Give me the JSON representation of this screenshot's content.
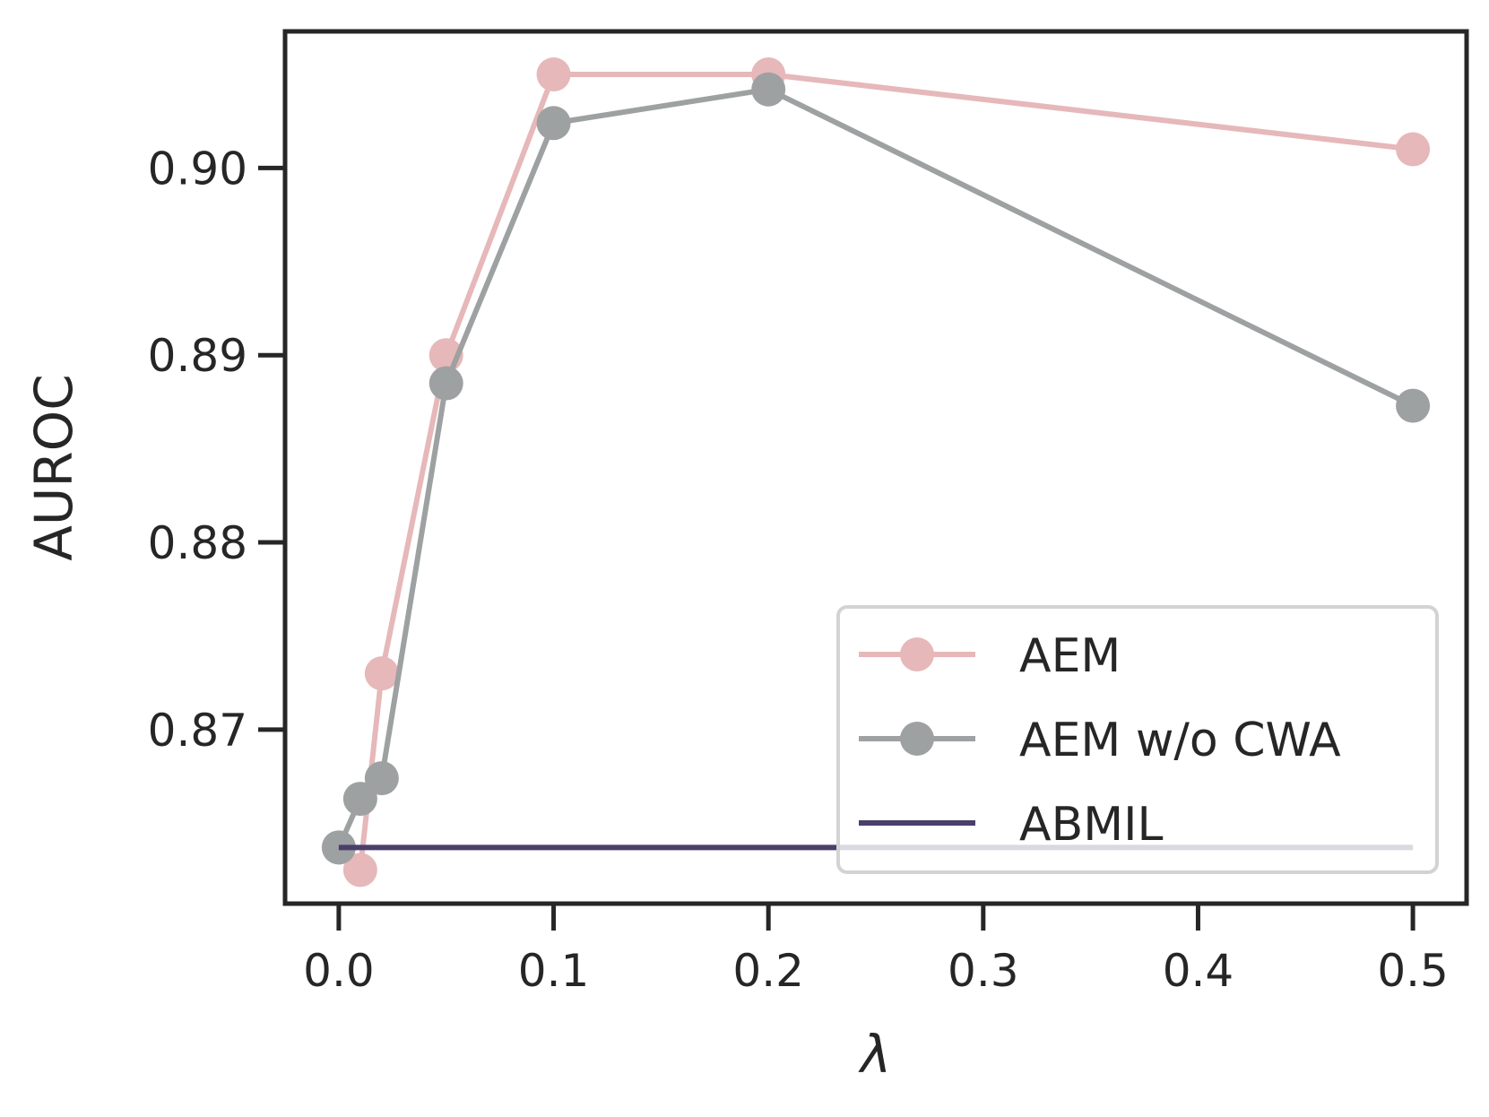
{
  "chart_data": {
    "type": "line",
    "title": "",
    "xlabel": "λ",
    "ylabel": "AUROC",
    "xlim": [
      -0.025,
      0.525
    ],
    "ylim": [
      0.8607,
      0.9073
    ],
    "x_ticks": [
      0.0,
      0.1,
      0.2,
      0.3,
      0.4,
      0.5
    ],
    "x_tick_labels": [
      "0.0",
      "0.1",
      "0.2",
      "0.3",
      "0.4",
      "0.5"
    ],
    "y_ticks": [
      0.87,
      0.88,
      0.89,
      0.9
    ],
    "y_tick_labels": [
      "0.87",
      "0.88",
      "0.89",
      "0.90"
    ],
    "grid": false,
    "legend_position": "lower-right",
    "series": [
      {
        "name": "AEM",
        "color": "#e6b8b9",
        "marker": "circle",
        "x": [
          0.0,
          0.01,
          0.02,
          0.05,
          0.1,
          0.2,
          0.5
        ],
        "y": [
          0.8637,
          0.8625,
          0.873,
          0.89,
          0.905,
          0.905,
          0.901
        ]
      },
      {
        "name": "AEM w/o CWA",
        "color": "#9da1a2",
        "marker": "circle",
        "x": [
          0.0,
          0.01,
          0.02,
          0.05,
          0.1,
          0.2,
          0.5
        ],
        "y": [
          0.8637,
          0.8663,
          0.8674,
          0.8885,
          0.9024,
          0.9042,
          0.8873
        ]
      },
      {
        "name": "ABMIL",
        "color": "#4a3f6b",
        "marker": "none",
        "x": [
          0.0,
          0.5
        ],
        "y": [
          0.8637,
          0.8637
        ]
      }
    ]
  }
}
